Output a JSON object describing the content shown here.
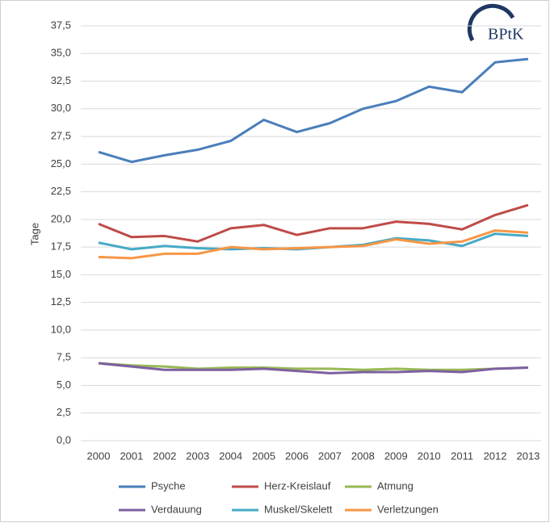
{
  "chart_data": {
    "type": "line",
    "y_label": "Tage",
    "logo": "BPtK",
    "categories": [
      "2000",
      "2001",
      "2002",
      "2003",
      "2004",
      "2005",
      "2006",
      "2007",
      "2008",
      "2009",
      "2010",
      "2011",
      "2012",
      "2013"
    ],
    "series": [
      {
        "name": "Psyche",
        "color": "#4a7ebb",
        "values": [
          26.1,
          25.2,
          25.8,
          26.3,
          27.1,
          29.0,
          27.9,
          28.7,
          30.0,
          30.7,
          32.0,
          31.5,
          34.2,
          34.5
        ]
      },
      {
        "name": "Herz-Kreislauf",
        "color": "#be4b48",
        "values": [
          19.6,
          18.4,
          18.5,
          18.0,
          19.2,
          19.5,
          18.6,
          19.2,
          19.2,
          19.8,
          19.6,
          19.1,
          20.4,
          21.3
        ]
      },
      {
        "name": "Atmung",
        "color": "#98b954",
        "values": [
          7.0,
          6.8,
          6.7,
          6.5,
          6.6,
          6.6,
          6.5,
          6.5,
          6.4,
          6.5,
          6.4,
          6.4,
          6.5,
          6.6
        ]
      },
      {
        "name": "Verdauung",
        "color": "#7d60a0",
        "values": [
          7.0,
          6.7,
          6.4,
          6.4,
          6.4,
          6.5,
          6.3,
          6.1,
          6.2,
          6.2,
          6.3,
          6.2,
          6.5,
          6.6
        ]
      },
      {
        "name": "Muskel/Skelett",
        "color": "#46aac5",
        "values": [
          17.9,
          17.3,
          17.6,
          17.4,
          17.3,
          17.4,
          17.3,
          17.5,
          17.7,
          18.3,
          18.1,
          17.6,
          18.7,
          18.5
        ]
      },
      {
        "name": "Verletzungen",
        "color": "#f79646",
        "values": [
          16.6,
          16.5,
          16.9,
          16.9,
          17.5,
          17.3,
          17.4,
          17.5,
          17.6,
          18.2,
          17.8,
          18.0,
          19.0,
          18.8
        ]
      }
    ],
    "ylim": [
      0,
      37.5
    ],
    "yticks": [
      {
        "value": 0,
        "label": "0,0"
      },
      {
        "value": 2.5,
        "label": "2,5"
      },
      {
        "value": 5,
        "label": "5,0"
      },
      {
        "value": 7.5,
        "label": "7,5"
      },
      {
        "value": 10,
        "label": "10,0"
      },
      {
        "value": 12.5,
        "label": "12,5"
      },
      {
        "value": 15,
        "label": "15,0"
      },
      {
        "value": 17.5,
        "label": "17,5"
      },
      {
        "value": 20,
        "label": "20,0"
      },
      {
        "value": 22.5,
        "label": "22,5"
      },
      {
        "value": 25,
        "label": "25,0"
      },
      {
        "value": 27.5,
        "label": "27,5"
      },
      {
        "value": 30,
        "label": "30,0"
      },
      {
        "value": 32.5,
        "label": "32,5"
      },
      {
        "value": 35,
        "label": "35,0"
      },
      {
        "value": 37.5,
        "label": "37,5"
      }
    ],
    "grid": true
  }
}
